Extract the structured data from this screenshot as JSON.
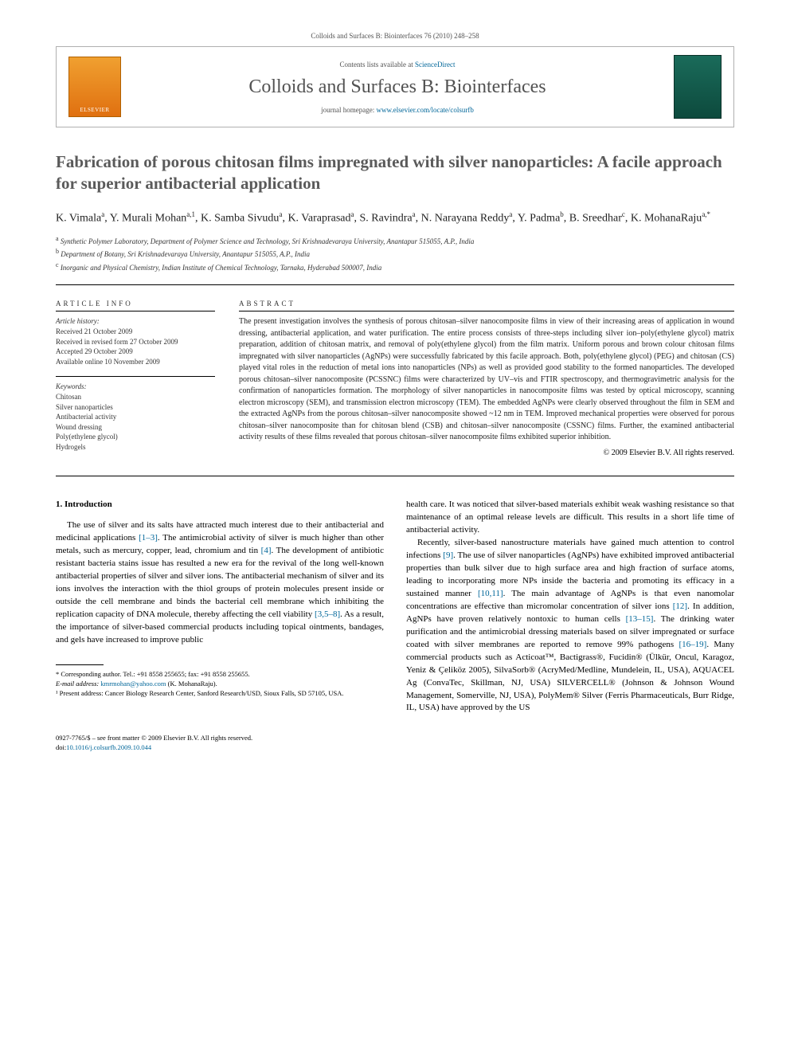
{
  "header": {
    "meta_line": "Colloids and Surfaces B: Biointerfaces 76 (2010) 248–258",
    "contents_prefix": "Contents lists available at ",
    "sciencedirect": "ScienceDirect",
    "journal_name": "Colloids and Surfaces B: Biointerfaces",
    "homepage_prefix": "journal homepage: ",
    "homepage_url": "www.elsevier.com/locate/colsurfb",
    "elsevier_label": "ELSEVIER"
  },
  "title": "Fabrication of porous chitosan films impregnated with silver nanoparticles: A facile approach for superior antibacterial application",
  "authors_html": "K. Vimala<sup>a</sup>, Y. Murali Mohan<sup>a,1</sup>, K. Samba Sivudu<sup>a</sup>, K. Varaprasad<sup>a</sup>, S. Ravindra<sup>a</sup>, N. Narayana Reddy<sup>a</sup>, Y. Padma<sup>b</sup>, B. Sreedhar<sup>c</sup>, K. MohanaRaju<sup>a,*</sup>",
  "affiliations": {
    "a": "Synthetic Polymer Laboratory, Department of Polymer Science and Technology, Sri Krishnadevaraya University, Anantapur 515055, A.P., India",
    "b": "Department of Botany, Sri Krishnadevaraya University, Anantapur 515055, A.P., India",
    "c": "Inorganic and Physical Chemistry, Indian Institute of Chemical Technology, Tarnaka, Hyderabad 500007, India"
  },
  "info": {
    "heading": "ARTICLE INFO",
    "history_label": "Article history:",
    "history": [
      "Received 21 October 2009",
      "Received in revised form 27 October 2009",
      "Accepted 29 October 2009",
      "Available online 10 November 2009"
    ],
    "keywords_label": "Keywords:",
    "keywords": [
      "Chitosan",
      "Silver nanoparticles",
      "Antibacterial activity",
      "Wound dressing",
      "Poly(ethylene glycol)",
      "Hydrogels"
    ]
  },
  "abstract": {
    "heading": "ABSTRACT",
    "text": "The present investigation involves the synthesis of porous chitosan–silver nanocomposite films in view of their increasing areas of application in wound dressing, antibacterial application, and water purification. The entire process consists of three-steps including silver ion–poly(ethylene glycol) matrix preparation, addition of chitosan matrix, and removal of poly(ethylene glycol) from the film matrix. Uniform porous and brown colour chitosan films impregnated with silver nanoparticles (AgNPs) were successfully fabricated by this facile approach. Both, poly(ethylene glycol) (PEG) and chitosan (CS) played vital roles in the reduction of metal ions into nanoparticles (NPs) as well as provided good stability to the formed nanoparticles. The developed porous chitosan–silver nanocomposite (PCSSNC) films were characterized by UV–vis and FTIR spectroscopy, and thermogravimetric analysis for the confirmation of nanoparticles formation. The morphology of silver nanoparticles in nanocomposite films was tested by optical microscopy, scanning electron microscopy (SEM), and transmission electron microscopy (TEM). The embedded AgNPs were clearly observed throughout the film in SEM and the extracted AgNPs from the porous chitosan–silver nanocomposite showed ~12 nm in TEM. Improved mechanical properties were observed for porous chitosan–silver nanocomposite than for chitosan blend (CSB) and chitosan–silver nanocomposite (CSSNC) films. Further, the examined antibacterial activity results of these films revealed that porous chitosan–silver nanocomposite films exhibited superior inhibition.",
    "copyright": "© 2009 Elsevier B.V. All rights reserved."
  },
  "section1": {
    "heading": "1. Introduction",
    "para1_pre": "The use of silver and its salts have attracted much interest due to their antibacterial and medicinal applications ",
    "ref1": "[1–3]",
    "para1_mid1": ". The antimicrobial activity of silver is much higher than other metals, such as mercury, copper, lead, chromium and tin ",
    "ref2": "[4]",
    "para1_mid2": ". The development of antibiotic resistant bacteria stains issue has resulted a new era for the revival of the long well-known antibacterial properties of silver and silver ions. The antibacterial mechanism of silver and its ions involves the interaction with the thiol groups of protein molecules present inside or outside the cell membrane and binds the bacterial cell membrane which inhibiting the replication capacity of DNA molecule, thereby affecting the cell viability ",
    "ref3": "[3,5–8]",
    "para1_end": ". As a result, the importance of silver-based commercial products including topical ointments, bandages, and gels have increased to improve public"
  },
  "col2": {
    "para1": "health care. It was noticed that silver-based materials exhibit weak washing resistance so that maintenance of an optimal release levels are difficult. This results in a short life time of antibacterial activity.",
    "para2_pre": "Recently, silver-based nanostructure materials have gained much attention to control infections ",
    "ref9": "[9]",
    "para2_mid1": ". The use of silver nanoparticles (AgNPs) have exhibited improved antibacterial properties than bulk silver due to high surface area and high fraction of surface atoms, leading to incorporating more NPs inside the bacteria and promoting its efficacy in a sustained manner ",
    "ref1011": "[10,11]",
    "para2_mid2": ". The main advantage of AgNPs is that even nanomolar concentrations are effective than micromolar concentration of silver ions ",
    "ref12": "[12]",
    "para2_mid3": ". In addition, AgNPs have proven relatively nontoxic to human cells ",
    "ref1315": "[13–15]",
    "para2_mid4": ". The drinking water purification and the antimicrobial dressing materials based on silver impregnated or surface coated with silver membranes are reported to remove 99% pathogens ",
    "ref1619": "[16–19]",
    "para2_end": ". Many commercial products such as Acticoat™, Bactigrass®, Fucidin® (Ülkür, Oncul, Karagoz, Yeniz & Çeliköz 2005), SilvaSorb® (AcryMed/Medline, Mundelein, IL, USA), AQUACEL Ag (ConvaTec, Skillman, NJ, USA) SILVERCELL® (Johnson & Johnson Wound Management, Somerville, NJ, USA), PolyMem® Silver (Ferris Pharmaceuticals, Burr Ridge, IL, USA) have approved by the US"
  },
  "footnotes": {
    "corresp_label": "* Corresponding author. Tel.: +91 8558 255655; fax: +91 8558 255655.",
    "email_label": "E-mail address: ",
    "email": "kmrmohan@yahoo.com",
    "email_suffix": " (K. MohanaRaju).",
    "present_addr": "¹ Present address: Cancer Biology Research Center, Sanford Research/USD, Sioux Falls, SD 57105, USA."
  },
  "footer": {
    "line1": "0927-7765/$ – see front matter © 2009 Elsevier B.V. All rights reserved.",
    "doi_prefix": "doi:",
    "doi": "10.1016/j.colsurfb.2009.10.044"
  }
}
